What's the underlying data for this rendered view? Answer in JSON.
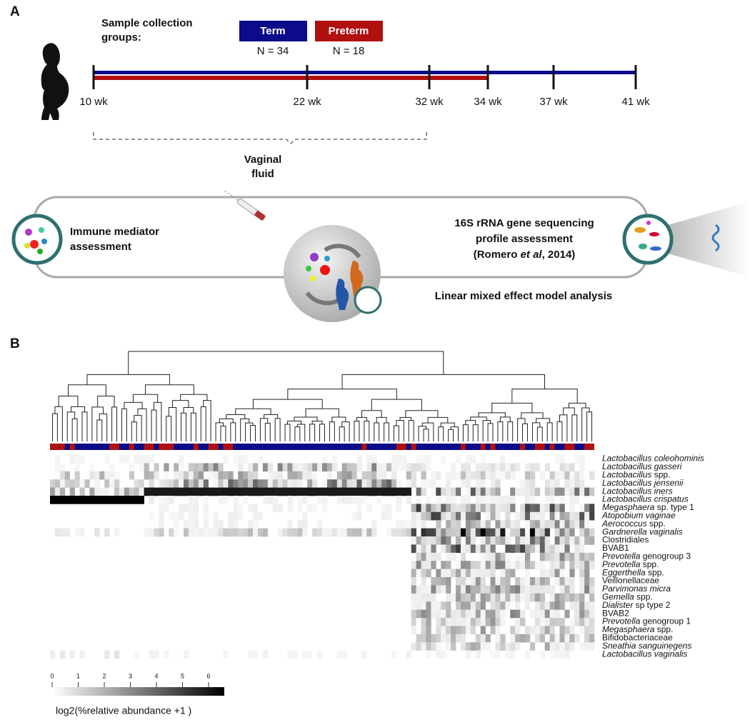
{
  "panel_a": {
    "label": "A",
    "groups_title": [
      "Sample collection",
      "groups:"
    ],
    "groups": [
      {
        "name": "Term",
        "n": "N = 34",
        "color": "#0c0c8a"
      },
      {
        "name": "Preterm",
        "n": "N = 18",
        "color": "#b01010"
      }
    ],
    "timeline": [
      "10 wk",
      "22 wk",
      "32 wk",
      "34 wk",
      "37 wk",
      "41 wk"
    ],
    "sample_label": [
      "Vaginal",
      "fluid"
    ],
    "left_box": [
      "Immune mediator",
      "assessment"
    ],
    "right_box": {
      "lines": [
        "16S rRNA gene sequencing",
        "profile assessment"
      ],
      "citation": [
        {
          "plain": "(Romero "
        },
        {
          "italic": "et al"
        },
        {
          "plain": ", 2014)"
        }
      ]
    },
    "center_label": "Linear mixed effect model analysis"
  },
  "panel_b": {
    "label": "B",
    "taxa": [
      {
        "italic": "Lactobacillus coleohominis"
      },
      {
        "italic": "Lactobacillus gasseri"
      },
      {
        "italic": "Lactobacillus",
        "plain": " spp."
      },
      {
        "italic": "Lactobacillus jensenii"
      },
      {
        "italic": "Lactobacillus iners"
      },
      {
        "italic": "Lactobacillus crispatus"
      },
      {
        "italic": "Megasphaera",
        "plain": " sp. type 1"
      },
      {
        "italic": "Atopobium vaginae"
      },
      {
        "italic": "Aerococcus",
        "plain": " spp."
      },
      {
        "italic": "Gardnerella vaginalis"
      },
      {
        "plain": "Clostridiales"
      },
      {
        "plain": "BVAB1"
      },
      {
        "italic": "Prevotella",
        "plain": " genogroup 3"
      },
      {
        "italic": "Prevotella",
        "plain": " spp."
      },
      {
        "italic": "Eggerthella",
        "plain": " spp."
      },
      {
        "plain": "Veillonellaceae"
      },
      {
        "italic": "Parvimonas micra"
      },
      {
        "italic": "Gemella",
        "plain": " spp."
      },
      {
        "italic": "Dialister",
        "plain": " sp type 2"
      },
      {
        "plain": "BVAB2"
      },
      {
        "italic": "Prevotella",
        "plain": " genogroup 1"
      },
      {
        "italic": "Megasphaera",
        "plain": " spp."
      },
      {
        "plain": "Bifidobacteriaceae"
      },
      {
        "italic": "Sneathia sanguinegens"
      },
      {
        "italic": "Lactobacillus vaginalis"
      }
    ],
    "colorbar_ticks": [
      0,
      1,
      2,
      3,
      4,
      5,
      6
    ],
    "colorbar_label": "log2(%relative abundance +1 )"
  }
}
